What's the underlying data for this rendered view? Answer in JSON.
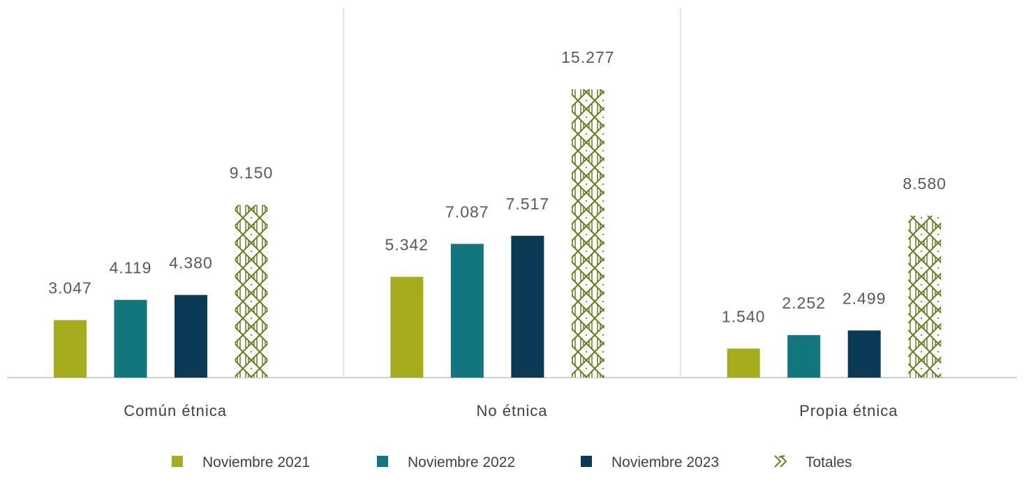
{
  "chart_data": {
    "type": "bar",
    "categories": [
      "Común étnica",
      "No étnica",
      "Propia étnica"
    ],
    "series": [
      {
        "name": "Noviembre 2021",
        "values": [
          3047,
          5342,
          1540
        ],
        "labels": [
          "3.047",
          "5.342",
          "1.540"
        ],
        "color": "#a6ad1c",
        "pattern": "solid"
      },
      {
        "name": "Noviembre 2022",
        "values": [
          4119,
          7087,
          2252
        ],
        "labels": [
          "4.119",
          "7.087",
          "2.252"
        ],
        "color": "#12767e",
        "pattern": "solid"
      },
      {
        "name": "Noviembre 2023",
        "values": [
          4380,
          7517,
          2499
        ],
        "labels": [
          "4.380",
          "7.517",
          "2.499"
        ],
        "color": "#0b3a56",
        "pattern": "solid"
      },
      {
        "name": "Totales",
        "values": [
          9150,
          15277,
          8580
        ],
        "labels": [
          "9.150",
          "15.277",
          "8.580"
        ],
        "color": "#6b7a1e",
        "pattern": "lattice"
      }
    ],
    "ylim": [
      0,
      19500
    ],
    "grid": false,
    "legend_position": "bottom",
    "title": "",
    "xlabel": "",
    "ylabel": ""
  }
}
